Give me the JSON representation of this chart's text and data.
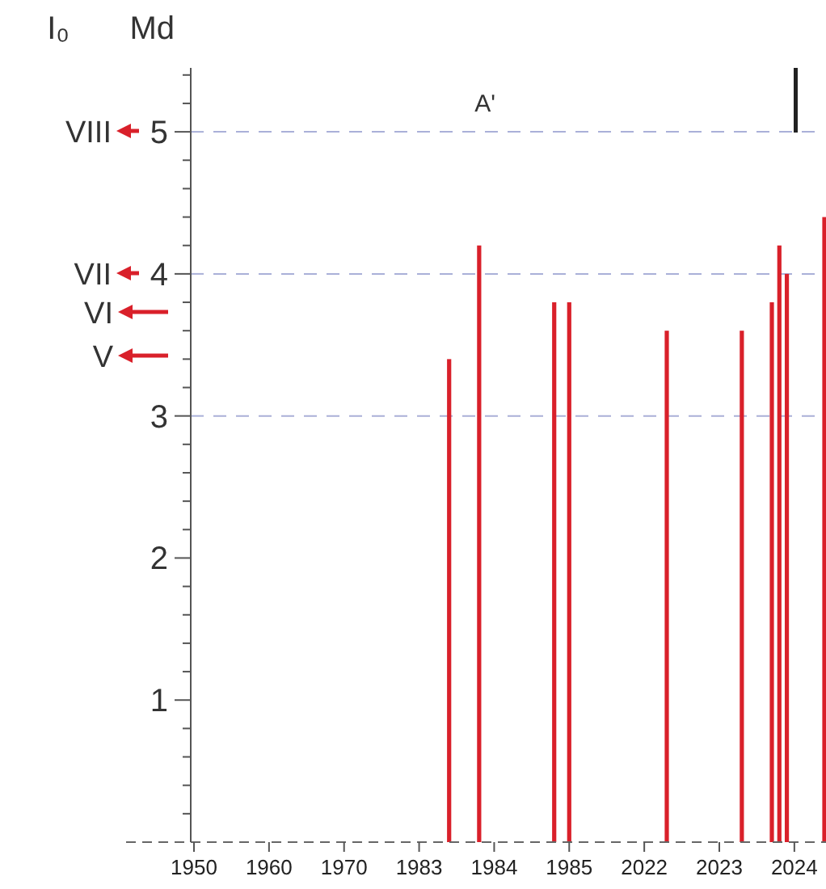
{
  "chart_data": {
    "type": "bar",
    "title": "A'",
    "ylabel": "Md",
    "categories": [
      "1950",
      null,
      null,
      null,
      null,
      null,
      null,
      null,
      null,
      null,
      "1960",
      null,
      null,
      null,
      null,
      null,
      null,
      null,
      null,
      null,
      "1970",
      null,
      null,
      null,
      null,
      null,
      null,
      null,
      null,
      null,
      "1983",
      null,
      null,
      null,
      null,
      null,
      null,
      null,
      null,
      null,
      "1984",
      null,
      null,
      null,
      null,
      null,
      null,
      null,
      null,
      null,
      "1985",
      null,
      null,
      null,
      null,
      null,
      null,
      null,
      null,
      null,
      "2022",
      null,
      null,
      null,
      null,
      null,
      null,
      null,
      null,
      null,
      "2023",
      null,
      null,
      null,
      null,
      null,
      null,
      null,
      null,
      null,
      "2024",
      null,
      null,
      null,
      null
    ],
    "values": [
      null,
      null,
      null,
      null,
      null,
      null,
      null,
      null,
      null,
      null,
      null,
      null,
      null,
      null,
      null,
      null,
      null,
      null,
      null,
      null,
      null,
      null,
      null,
      null,
      null,
      null,
      null,
      null,
      null,
      null,
      null,
      null,
      null,
      null,
      3.4,
      null,
      null,
      null,
      4.2,
      null,
      null,
      null,
      null,
      null,
      null,
      null,
      null,
      null,
      3.8,
      null,
      3.8,
      null,
      null,
      null,
      null,
      null,
      null,
      null,
      null,
      null,
      null,
      null,
      null,
      3.6,
      null,
      null,
      null,
      null,
      null,
      null,
      null,
      null,
      null,
      3.6,
      null,
      null,
      null,
      3.8,
      4.2,
      4.0,
      null,
      null,
      null,
      null,
      4.4
    ],
    "color": "#d9202a",
    "ylim": [
      0,
      5.45
    ],
    "yticks": [
      {
        "value": 0.2,
        "label": null
      },
      {
        "value": 0.4,
        "label": null
      },
      {
        "value": 0.6,
        "label": null
      },
      {
        "value": 0.8,
        "label": null
      },
      1,
      {
        "value": 1.2,
        "label": null
      },
      {
        "value": 1.4,
        "label": null
      },
      {
        "value": 1.6,
        "label": null
      },
      {
        "value": 1.8,
        "label": null
      },
      2,
      {
        "value": 2.2,
        "label": null
      },
      {
        "value": 2.4,
        "label": null
      },
      {
        "value": 2.6,
        "label": null
      },
      {
        "value": 2.8,
        "label": null
      },
      3,
      {
        "value": 3.2,
        "label": null
      },
      {
        "value": 3.4,
        "label": null
      },
      {
        "value": 3.6,
        "label": null
      },
      {
        "value": 3.8,
        "label": null
      },
      4,
      {
        "value": 4.2,
        "label": null
      },
      {
        "value": 4.4,
        "label": null
      },
      {
        "value": 4.6,
        "label": null
      },
      {
        "value": 4.8,
        "label": null
      },
      5,
      {
        "value": 5.2,
        "label": null
      },
      {
        "value": 5.4,
        "label": null
      }
    ],
    "annotations": [
      "I₀",
      "VIII",
      "VII",
      "VI",
      "V"
    ],
    "ref_lines": [
      {
        "axis": "y",
        "value": 5,
        "color": "#aab0d8",
        "line_style": "dashed"
      },
      {
        "axis": "y",
        "value": 4,
        "color": "#aab0d8",
        "line_style": "dashed"
      },
      {
        "axis": "y",
        "value": 3,
        "color": "#aab0d8",
        "line_style": "dashed"
      }
    ],
    "grid": false
  }
}
